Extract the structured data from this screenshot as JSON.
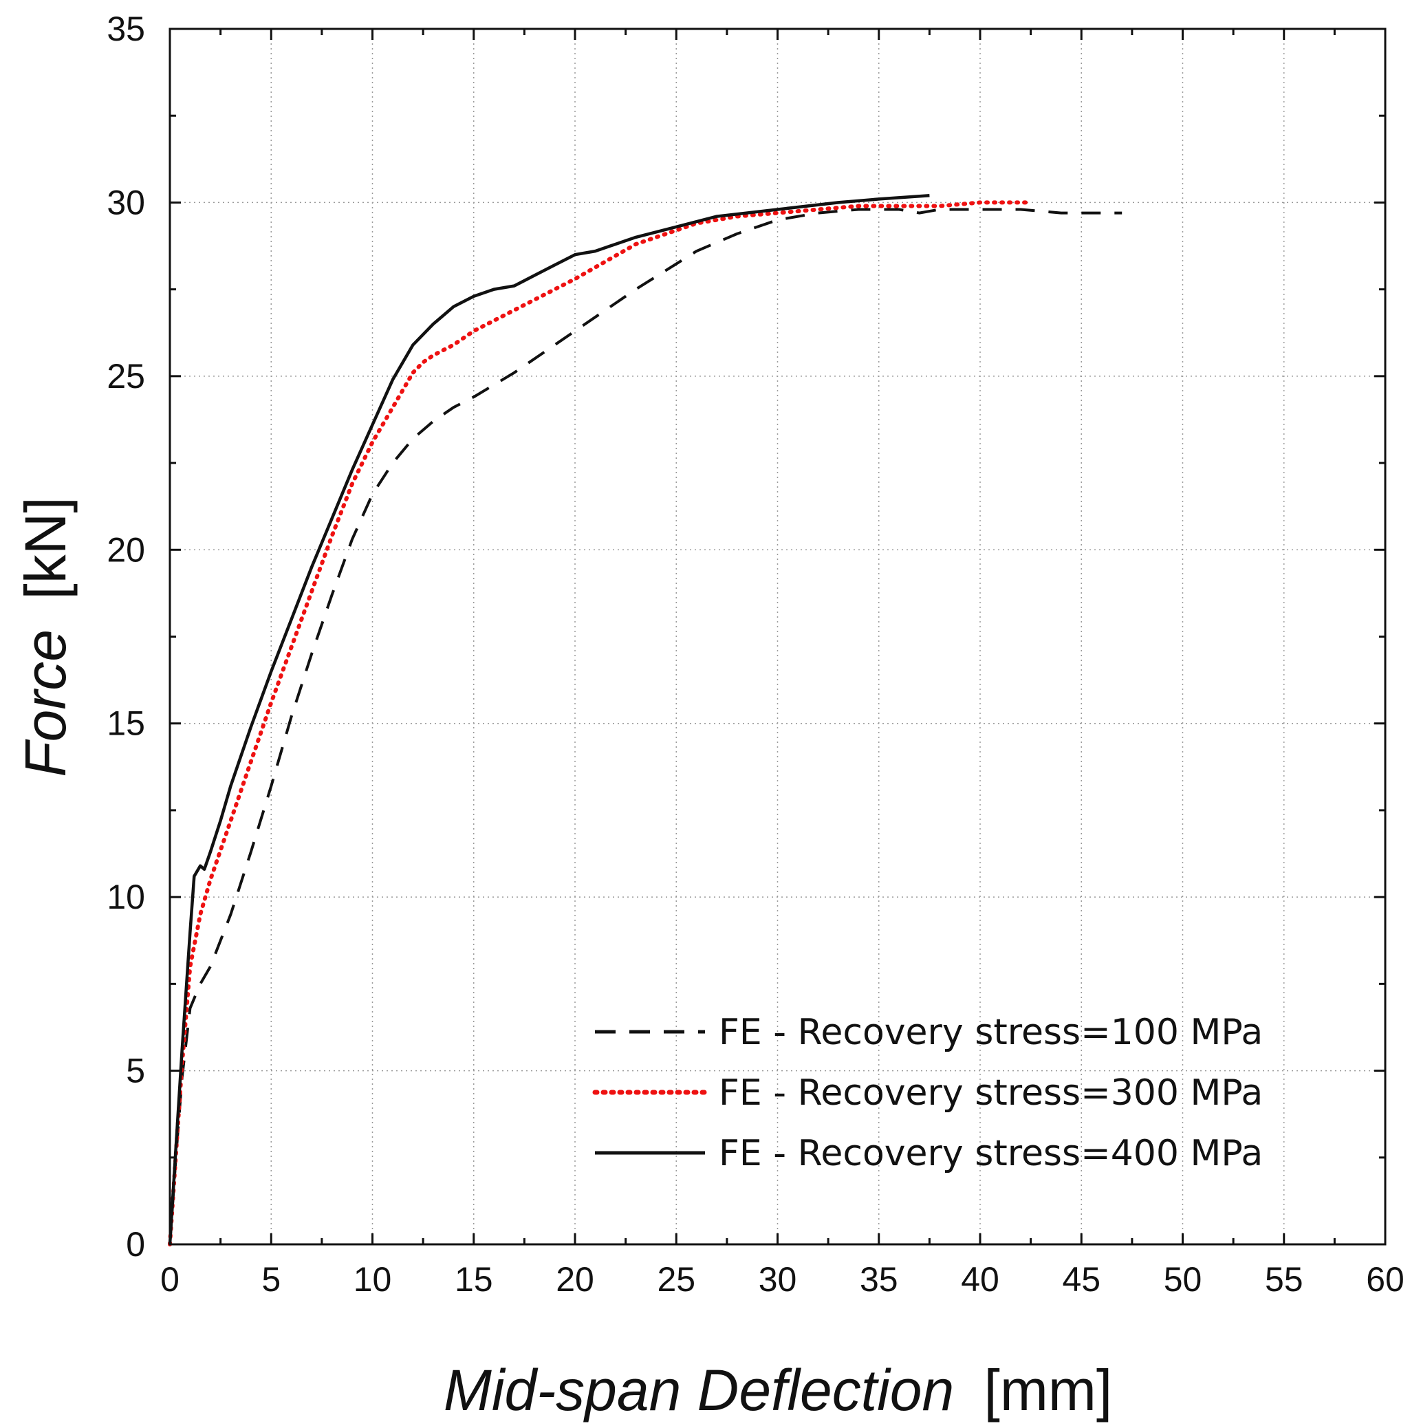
{
  "chart_data": {
    "type": "line",
    "title": "",
    "xlabel_italic": "Mid-span Deflection",
    "xlabel_unit": "[mm]",
    "ylabel_italic": "Force",
    "ylabel_unit": "[kN]",
    "xlim": [
      0,
      60
    ],
    "ylim": [
      0,
      35
    ],
    "xticks": [
      0,
      5,
      10,
      15,
      20,
      25,
      30,
      35,
      40,
      45,
      50,
      55,
      60
    ],
    "yticks": [
      0,
      5,
      10,
      15,
      20,
      25,
      30,
      35
    ],
    "grid": true,
    "legend_position": "bottom-right",
    "series": [
      {
        "name": "FE - Recovery stress=100 MPa",
        "style": "dashed",
        "color": "#111111",
        "x": [
          0,
          0.3,
          0.6,
          1.0,
          1.5,
          2.0,
          3.0,
          4.0,
          5.0,
          6.0,
          7.0,
          8.0,
          9.0,
          10.0,
          11.0,
          12.0,
          13.0,
          14.0,
          15.0,
          17.0,
          20.0,
          23.0,
          26.0,
          28.0,
          30.0,
          32.0,
          34.0,
          36.0,
          37.0,
          38.0,
          40.0,
          42.0,
          44.0,
          45.0,
          47.0
        ],
        "y": [
          0,
          2.5,
          4.8,
          6.8,
          7.5,
          8.0,
          9.5,
          11.3,
          13.2,
          15.2,
          17.0,
          18.7,
          20.3,
          21.6,
          22.5,
          23.2,
          23.7,
          24.1,
          24.4,
          25.1,
          26.3,
          27.5,
          28.6,
          29.1,
          29.5,
          29.7,
          29.8,
          29.8,
          29.7,
          29.8,
          29.8,
          29.8,
          29.7,
          29.7,
          29.7
        ]
      },
      {
        "name": "FE - Recovery stress=300 MPa",
        "style": "dotted",
        "color": "#ee1111",
        "x": [
          0,
          0.3,
          0.6,
          1.0,
          1.5,
          2.0,
          3.0,
          4.0,
          5.0,
          6.0,
          7.0,
          8.0,
          9.0,
          10.0,
          11.0,
          12.0,
          12.5,
          13.0,
          14.0,
          15.0,
          17.0,
          20.0,
          23.0,
          26.0,
          28.0,
          30.0,
          32.0,
          34.0,
          36.0,
          38.0,
          40.0,
          42.0,
          42.5
        ],
        "y": [
          0,
          2.6,
          5.2,
          8.0,
          9.5,
          10.5,
          12.2,
          13.9,
          15.6,
          17.2,
          18.8,
          20.4,
          21.9,
          23.1,
          24.1,
          25.1,
          25.4,
          25.6,
          25.9,
          26.3,
          26.9,
          27.8,
          28.8,
          29.4,
          29.6,
          29.7,
          29.8,
          29.9,
          29.9,
          29.9,
          30.0,
          30.0,
          30.0
        ]
      },
      {
        "name": "FE - Recovery stress=400 MPa",
        "style": "solid",
        "color": "#111111",
        "x": [
          0,
          0.3,
          0.6,
          1.0,
          1.2,
          1.5,
          1.7,
          2.0,
          2.5,
          3.0,
          4.0,
          5.0,
          6.0,
          7.0,
          8.0,
          9.0,
          10.0,
          11.0,
          12.0,
          12.5,
          13.0,
          14.0,
          15.0,
          16.0,
          17.0,
          18.0,
          19.0,
          20.0,
          21.0,
          22.0,
          23.0,
          25.0,
          27.0,
          30.0,
          33.0,
          35.0,
          37.5
        ],
        "y": [
          0,
          2.8,
          5.6,
          9.0,
          10.6,
          10.9,
          10.8,
          11.3,
          12.2,
          13.2,
          14.9,
          16.5,
          18.0,
          19.5,
          20.9,
          22.3,
          23.6,
          24.9,
          25.9,
          26.2,
          26.5,
          27.0,
          27.3,
          27.5,
          27.6,
          27.9,
          28.2,
          28.5,
          28.6,
          28.8,
          29.0,
          29.3,
          29.6,
          29.8,
          30.0,
          30.1,
          30.2
        ]
      }
    ]
  }
}
